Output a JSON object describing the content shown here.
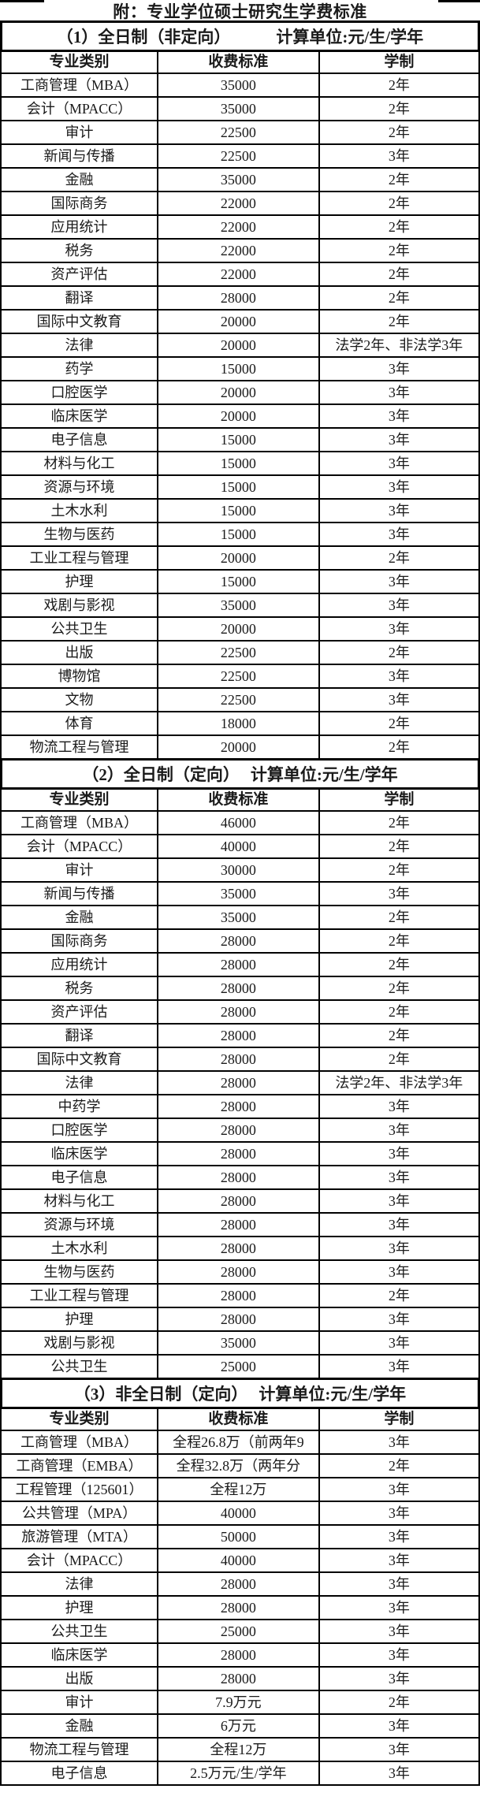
{
  "title": "附：专业学位硕士研究生学费标准",
  "sections": [
    {
      "heading_left": "（1）全日制（非定向）",
      "heading_right": "计算单位:元/生/学年",
      "columns": [
        "专业类别",
        "收费标准",
        "学制"
      ],
      "rows": [
        [
          "工商管理（MBA）",
          "35000",
          "2年"
        ],
        [
          "会计（MPACC）",
          "35000",
          "2年"
        ],
        [
          "审计",
          "22500",
          "2年"
        ],
        [
          "新闻与传播",
          "22500",
          "3年"
        ],
        [
          "金融",
          "35000",
          "2年"
        ],
        [
          "国际商务",
          "22000",
          "2年"
        ],
        [
          "应用统计",
          "22000",
          "2年"
        ],
        [
          "税务",
          "22000",
          "2年"
        ],
        [
          "资产评估",
          "22000",
          "2年"
        ],
        [
          "翻译",
          "28000",
          "2年"
        ],
        [
          "国际中文教育",
          "20000",
          "2年"
        ],
        [
          "法律",
          "20000",
          "法学2年、非法学3年"
        ],
        [
          "药学",
          "15000",
          "3年"
        ],
        [
          "口腔医学",
          "20000",
          "3年"
        ],
        [
          "临床医学",
          "20000",
          "3年"
        ],
        [
          "电子信息",
          "15000",
          "3年"
        ],
        [
          "材料与化工",
          "15000",
          "3年"
        ],
        [
          "资源与环境",
          "15000",
          "3年"
        ],
        [
          "土木水利",
          "15000",
          "3年"
        ],
        [
          "生物与医药",
          "15000",
          "3年"
        ],
        [
          "工业工程与管理",
          "20000",
          "2年"
        ],
        [
          "护理",
          "15000",
          "3年"
        ],
        [
          "戏剧与影视",
          "35000",
          "3年"
        ],
        [
          "公共卫生",
          "20000",
          "3年"
        ],
        [
          "出版",
          "22500",
          "2年"
        ],
        [
          "博物馆",
          "22500",
          "3年"
        ],
        [
          "文物",
          "22500",
          "3年"
        ],
        [
          "体育",
          "18000",
          "2年"
        ],
        [
          "物流工程与管理",
          "20000",
          "2年"
        ]
      ]
    },
    {
      "heading_left": "（2）全日制（定向）",
      "heading_right": "计算单位:元/生/学年",
      "columns": [
        "专业类别",
        "收费标准",
        "学制"
      ],
      "rows": [
        [
          "工商管理（MBA）",
          "46000",
          "2年"
        ],
        [
          "会计（MPACC）",
          "40000",
          "2年"
        ],
        [
          "审计",
          "30000",
          "2年"
        ],
        [
          "新闻与传播",
          "35000",
          "3年"
        ],
        [
          "金融",
          "35000",
          "2年"
        ],
        [
          "国际商务",
          "28000",
          "2年"
        ],
        [
          "应用统计",
          "28000",
          "2年"
        ],
        [
          "税务",
          "28000",
          "2年"
        ],
        [
          "资产评估",
          "28000",
          "2年"
        ],
        [
          "翻译",
          "28000",
          "2年"
        ],
        [
          "国际中文教育",
          "28000",
          "2年"
        ],
        [
          "法律",
          "28000",
          "法学2年、非法学3年"
        ],
        [
          "中药学",
          "28000",
          "3年"
        ],
        [
          "口腔医学",
          "28000",
          "3年"
        ],
        [
          "临床医学",
          "28000",
          "3年"
        ],
        [
          "电子信息",
          "28000",
          "3年"
        ],
        [
          "材料与化工",
          "28000",
          "3年"
        ],
        [
          "资源与环境",
          "28000",
          "3年"
        ],
        [
          "土木水利",
          "28000",
          "3年"
        ],
        [
          "生物与医药",
          "28000",
          "3年"
        ],
        [
          "工业工程与管理",
          "28000",
          "2年"
        ],
        [
          "护理",
          "28000",
          "3年"
        ],
        [
          "戏剧与影视",
          "35000",
          "3年"
        ],
        [
          "公共卫生",
          "25000",
          "3年"
        ]
      ]
    },
    {
      "heading_left": "（3）非全日制（定向）",
      "heading_right": "计算单位:元/生/学年",
      "columns": [
        "专业类别",
        "收费标准",
        "学制"
      ],
      "rows": [
        [
          "工商管理（MBA）",
          "全程26.8万（前两年9",
          "3年"
        ],
        [
          "工商管理（EMBA）",
          "全程32.8万（两年分",
          "2年"
        ],
        [
          "工程管理（125601）",
          "全程12万",
          "3年"
        ],
        [
          "公共管理（MPA）",
          "40000",
          "3年"
        ],
        [
          "旅游管理（MTA）",
          "50000",
          "3年"
        ],
        [
          "会计（MPACC）",
          "40000",
          "3年"
        ],
        [
          "法律",
          "28000",
          "3年"
        ],
        [
          "护理",
          "28000",
          "3年"
        ],
        [
          "公共卫生",
          "25000",
          "3年"
        ],
        [
          "临床医学",
          "28000",
          "3年"
        ],
        [
          "出版",
          "28000",
          "3年"
        ],
        [
          "审计",
          "7.9万元",
          "2年"
        ],
        [
          "金融",
          "6万元",
          "3年"
        ],
        [
          "物流工程与管理",
          "全程12万",
          "3年"
        ],
        [
          "电子信息",
          "2.5万元/生/学年",
          "3年"
        ]
      ]
    }
  ]
}
